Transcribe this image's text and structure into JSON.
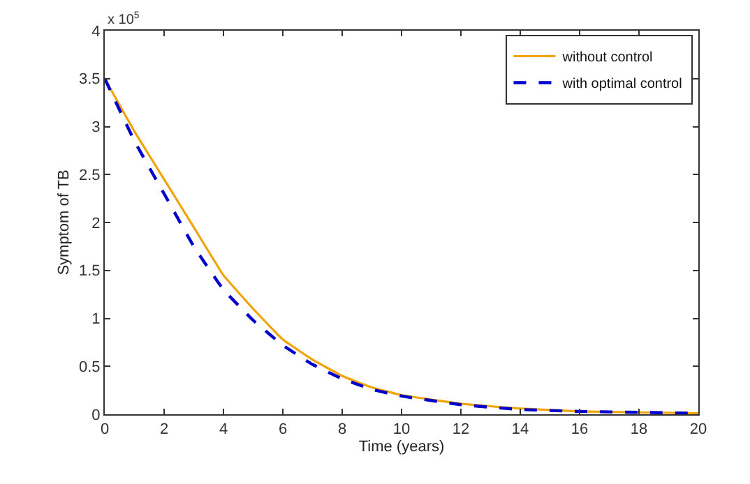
{
  "chart_data": {
    "type": "line",
    "xlabel": "Time (years)",
    "ylabel": "Symptom of TB",
    "annotations": [
      "x 10$^{5}$"
    ],
    "x": [
      0,
      1,
      2,
      3,
      4,
      5,
      6,
      7,
      8,
      9,
      10,
      12,
      14,
      16,
      18,
      20
    ],
    "series": [
      {
        "name": "without control",
        "color": "#f0a30a",
        "line_style": "solid",
        "values": [
          3.5,
          2.95,
          2.45,
          1.95,
          1.45,
          1.1,
          0.78,
          0.57,
          0.4,
          0.28,
          0.2,
          0.11,
          0.06,
          0.03,
          0.02,
          0.01
        ]
      },
      {
        "name": "with optimal control",
        "color": "#0000cc",
        "line_style": "dashed",
        "values": [
          3.5,
          2.85,
          2.3,
          1.75,
          1.3,
          0.98,
          0.72,
          0.52,
          0.37,
          0.26,
          0.19,
          0.1,
          0.05,
          0.03,
          0.02,
          0.01
        ]
      }
    ],
    "xlim": [
      0,
      20
    ],
    "xticks": [
      0,
      2,
      4,
      6,
      8,
      10,
      12,
      14,
      16,
      18,
      20
    ],
    "ylim": [
      0,
      4
    ],
    "yticks": [
      0,
      0.5,
      1,
      1.5,
      2,
      2.5,
      3,
      3.5,
      4
    ],
    "legend": "top right",
    "marker": "none"
  }
}
